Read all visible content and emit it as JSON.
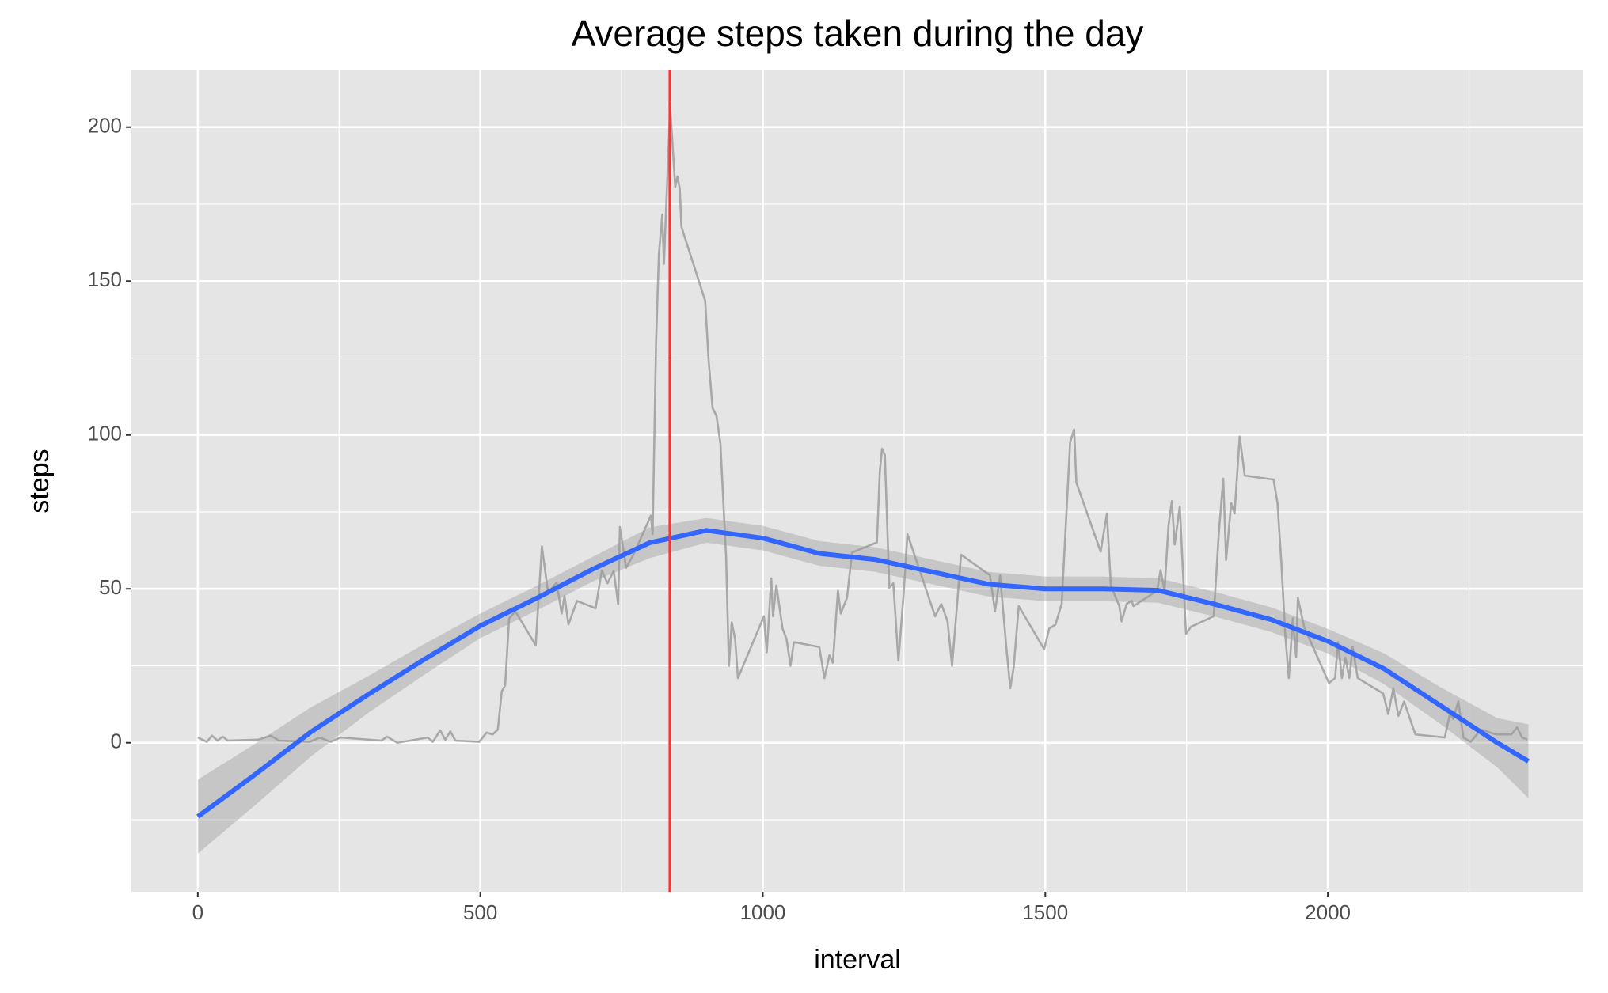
{
  "chart_data": {
    "type": "line",
    "title": "Average steps taken during the day",
    "x_label": "interval",
    "y_label": "steps",
    "xlim": [
      -117.5,
      2452.5
    ],
    "ylim": [
      -48.4,
      218.7
    ],
    "xticks": [
      0,
      500,
      1000,
      1500,
      2000
    ],
    "yticks": [
      0,
      50,
      100,
      150,
      200
    ],
    "x_minor_grid": [
      250,
      750,
      1250,
      1750,
      2250
    ],
    "y_minor_grid": [
      -25,
      25,
      75,
      125,
      175
    ],
    "grid": true,
    "panel_color": "#e5e5e5",
    "vline": 835,
    "vline_color": "#ff3333",
    "series": [
      {
        "color": "#999999",
        "x": [
          0,
          16,
          25,
          35,
          44,
          53,
          107,
          129,
          144,
          198,
          216,
          235,
          253,
          325,
          335,
          353,
          407,
          416,
          429,
          438,
          447,
          456,
          498,
          511,
          522,
          531,
          538,
          544,
          551,
          562,
          598,
          609,
          620,
          635,
          644,
          649,
          656,
          671,
          704,
          715,
          725,
          736,
          744,
          747,
          758,
          771,
          802,
          805,
          811,
          816,
          822,
          825,
          836,
          845,
          849,
          853,
          856,
          898,
          904,
          911,
          918,
          925,
          935,
          940,
          945,
          951,
          956,
          1002,
          1007,
          1015,
          1018,
          1024,
          1035,
          1042,
          1049,
          1055,
          1100,
          1109,
          1118,
          1124,
          1133,
          1138,
          1149,
          1158,
          1202,
          1207,
          1211,
          1216,
          1224,
          1231,
          1240,
          1249,
          1256,
          1305,
          1316,
          1327,
          1335,
          1351,
          1402,
          1411,
          1420,
          1431,
          1438,
          1444,
          1453,
          1498,
          1507,
          1518,
          1529,
          1544,
          1551,
          1555,
          1598,
          1609,
          1616,
          1631,
          1635,
          1644,
          1653,
          1656,
          1698,
          1704,
          1711,
          1718,
          1724,
          1729,
          1738,
          1749,
          1758,
          1798,
          1807,
          1815,
          1820,
          1829,
          1835,
          1844,
          1853,
          1904,
          1911,
          1918,
          1925,
          1931,
          1938,
          1944,
          1947,
          1958,
          2002,
          2013,
          2018,
          2025,
          2031,
          2038,
          2044,
          2053,
          2098,
          2107,
          2116,
          2125,
          2135,
          2155,
          2207,
          2216,
          2222,
          2231,
          2240,
          2253,
          2271,
          2298,
          2325,
          2335,
          2344,
          2353
        ],
        "values": [
          1.7,
          0.3,
          2.3,
          0.7,
          2,
          0.7,
          1,
          2.3,
          0.7,
          0.3,
          1.7,
          0.3,
          1.7,
          0.7,
          2,
          0,
          1.7,
          0.3,
          4,
          1,
          3.7,
          0.7,
          0.3,
          3.3,
          2.7,
          4.3,
          16.7,
          18.7,
          40.4,
          42.7,
          31.7,
          63.8,
          48.7,
          52.1,
          42,
          47.7,
          38.4,
          46.1,
          43.7,
          56,
          51.8,
          55.8,
          45.1,
          70.1,
          56.8,
          61.1,
          73.8,
          67.8,
          129.5,
          158.6,
          171.6,
          155.6,
          206.7,
          180.6,
          184,
          180,
          167.6,
          143.6,
          124.5,
          108.8,
          106.2,
          97.2,
          60.4,
          25,
          39.1,
          33.7,
          21,
          41.1,
          29.4,
          53.4,
          41.1,
          51.1,
          37.1,
          33.7,
          25,
          32.7,
          31.1,
          21,
          28.4,
          26,
          49.4,
          42,
          47.1,
          61.8,
          65.1,
          87.8,
          95.5,
          93.5,
          50.4,
          51.8,
          26.7,
          47.7,
          67.8,
          41.1,
          45.1,
          39.4,
          25,
          61.1,
          54.4,
          42.7,
          54.4,
          31.1,
          17.7,
          24.4,
          44.4,
          30.4,
          37.1,
          38.4,
          45.1,
          97.8,
          101.8,
          84.5,
          62.1,
          74.5,
          51.1,
          44.4,
          39.4,
          45.1,
          46.1,
          44.4,
          49.4,
          56.1,
          49.4,
          70.5,
          78.5,
          64.4,
          76.8,
          35.4,
          37.7,
          41.1,
          67.8,
          85.8,
          59.4,
          77.8,
          74.5,
          99.5,
          86.8,
          85.5,
          77.8,
          57.8,
          34.4,
          21,
          40.4,
          27.7,
          47.1,
          37.7,
          19.4,
          21,
          32.7,
          21,
          27.7,
          21,
          31.1,
          21,
          16,
          9.3,
          17.7,
          8.7,
          13.4,
          2.7,
          1.7,
          9.3,
          7.7,
          13.4,
          1.7,
          0.3,
          4.3,
          2.7,
          2.7,
          5,
          1.7,
          1
        ]
      },
      {
        "color": "#3366ff",
        "band_color": "#999999",
        "x": [
          0,
          100,
          200,
          300,
          400,
          500,
          600,
          700,
          800,
          900,
          1000,
          1100,
          1200,
          1300,
          1400,
          1500,
          1600,
          1700,
          1800,
          1900,
          2000,
          2100,
          2200,
          2300,
          2355
        ],
        "values": [
          -24,
          -10.5,
          3.5,
          15.5,
          27,
          38,
          47,
          56.5,
          65,
          69,
          66.5,
          61.5,
          59.5,
          55.5,
          51.5,
          50,
          50,
          49.5,
          45,
          40,
          33,
          24,
          12,
          0,
          -6
        ],
        "lower": [
          -36,
          -20.5,
          -4.5,
          9.5,
          22,
          34,
          43,
          52.5,
          60,
          65,
          62.5,
          57.5,
          55.5,
          51.5,
          47.5,
          46,
          46,
          45.5,
          41,
          36,
          29,
          19,
          6,
          -8,
          -18
        ],
        "upper": [
          -12,
          -0.5,
          11.5,
          21.5,
          32,
          42,
          51,
          60.5,
          70,
          73,
          70.5,
          65.5,
          63.5,
          59.5,
          55.5,
          54,
          54,
          53.5,
          49,
          44,
          37,
          29,
          18,
          8,
          6
        ]
      }
    ]
  }
}
